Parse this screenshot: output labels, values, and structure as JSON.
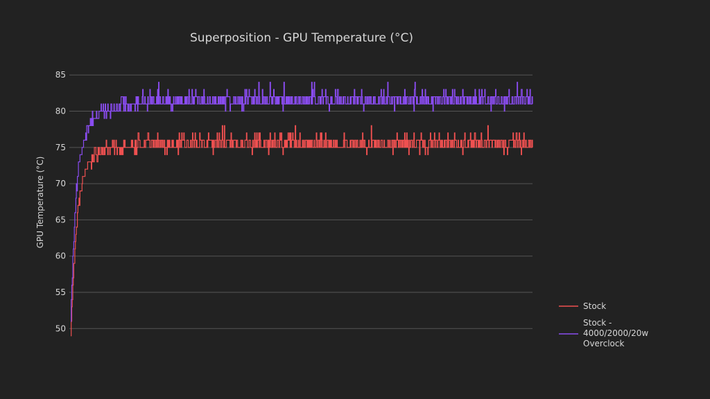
{
  "colors": {
    "background": "#222222",
    "text": "#d6d6d6",
    "grid": "#555555"
  },
  "chart_data": {
    "type": "line",
    "title": "Superposition - GPU Temperature (°C)",
    "xlabel": "",
    "ylabel": "GPU Temperature (°C)",
    "ylim": [
      48.5,
      85.5
    ],
    "yticks": [
      50,
      55,
      60,
      65,
      70,
      75,
      80,
      85
    ],
    "grid": true,
    "legend_position": "right",
    "series": [
      {
        "name": "Stock",
        "color": "#ef5050",
        "profile": {
          "ramp_x": [
            0,
            2,
            4,
            6,
            8,
            10,
            12,
            15,
            18,
            22,
            26,
            30,
            35,
            40,
            48,
            55,
            65,
            80,
            100,
            130
          ],
          "ramp_y": [
            49,
            53,
            56,
            59,
            61,
            63,
            65,
            67,
            68,
            70,
            71,
            72,
            73,
            73,
            74,
            74,
            75,
            75,
            75,
            75
          ],
          "steady_value": 75.6,
          "steady_range": [
            74,
            78
          ],
          "length": 900
        }
      },
      {
        "name": "Stock - 4000/2000/20w Overclock",
        "color": "#8a4cf0",
        "profile": {
          "ramp_x": [
            0,
            2,
            4,
            6,
            8,
            10,
            12,
            15,
            18,
            22,
            26,
            30,
            35,
            40,
            48,
            55,
            65,
            80,
            100,
            130
          ],
          "ramp_y": [
            52,
            56,
            60,
            63,
            66,
            68,
            70,
            72,
            73,
            75,
            76,
            77,
            78,
            79,
            79,
            80,
            80,
            80,
            81,
            81
          ],
          "steady_value": 81.2,
          "steady_range": [
            79,
            85
          ],
          "length": 900
        }
      }
    ]
  }
}
